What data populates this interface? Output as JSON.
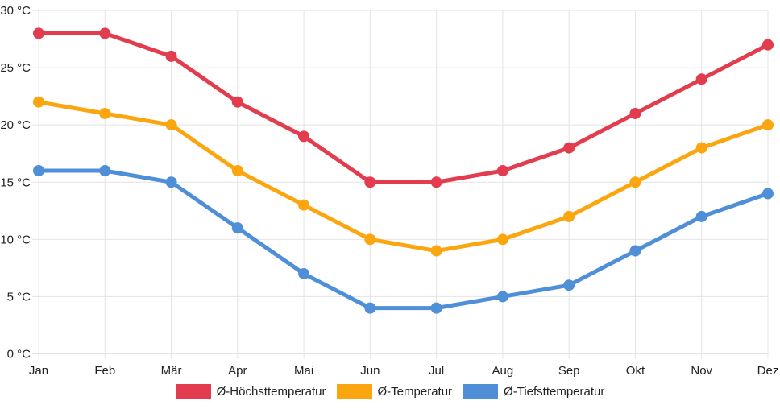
{
  "chart_data": {
    "type": "line",
    "title": "",
    "categories": [
      "Jan",
      "Feb",
      "Mär",
      "Apr",
      "Mai",
      "Jun",
      "Jul",
      "Aug",
      "Sep",
      "Okt",
      "Nov",
      "Dez"
    ],
    "series": [
      {
        "name": "Ø-Höchsttemperatur",
        "color": "#e23c4e",
        "values": [
          28,
          28,
          26,
          22,
          19,
          15,
          15,
          16,
          18,
          21,
          24,
          27
        ]
      },
      {
        "name": "Ø-Temperatur",
        "color": "#fba60f",
        "values": [
          22,
          21,
          20,
          16,
          13,
          10,
          9,
          10,
          12,
          15,
          18,
          20
        ]
      },
      {
        "name": "Ø-Tiefsttemperatur",
        "color": "#4e8fd8",
        "values": [
          16,
          16,
          15,
          11,
          7,
          4,
          4,
          5,
          6,
          9,
          12,
          14
        ]
      }
    ],
    "ylim": [
      0,
      30
    ],
    "yticks": [
      0,
      5,
      10,
      15,
      20,
      25,
      30
    ],
    "ytick_suffix": " °C",
    "ytick_labels": [
      "0 °C",
      "5 °C",
      "10 °C",
      "15 °C",
      "20 °C",
      "25 °C",
      "30 °C"
    ],
    "grid": true,
    "legend_position": "bottom"
  },
  "style": {
    "grid_color": "#e4e4e4",
    "text_color": "#222222",
    "background": "#ffffff",
    "line_width": 5,
    "point_radius": 7
  }
}
